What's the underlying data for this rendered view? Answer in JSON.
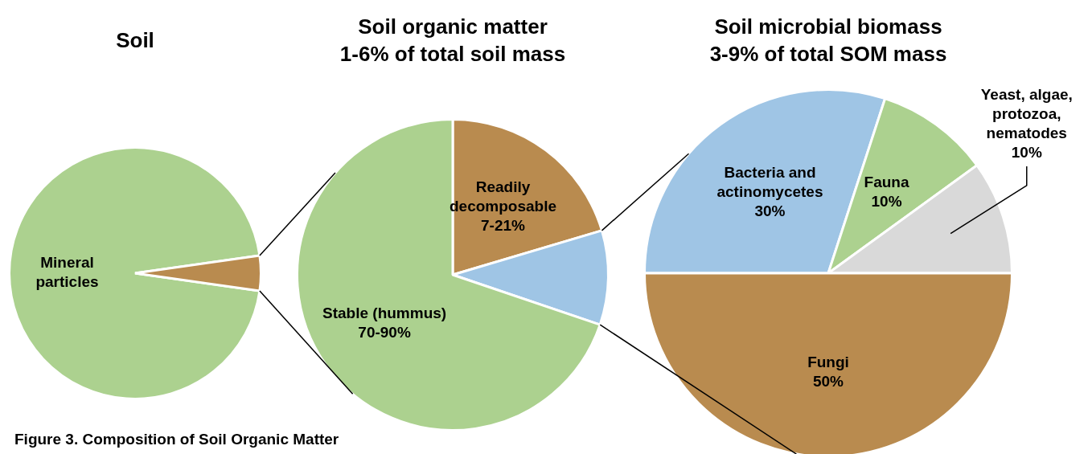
{
  "chart_data": [
    {
      "type": "pie",
      "title": "Soil",
      "categories": [
        "Mineral particles",
        null
      ],
      "values": [
        95.5,
        4.5
      ],
      "colors": [
        "#acd18f",
        "#b98b4f"
      ],
      "annotations": [
        "Figure 3. Composition of Soil Organic Matter"
      ]
    },
    {
      "type": "pie",
      "title": "Soil organic matter",
      "subtitle": "1-6% of total soil mass",
      "categories": [
        "Readily decomposable 7-21%",
        null,
        "Stable (hummus) 70-90%"
      ],
      "values": [
        20.4,
        9.8,
        69.8
      ],
      "colors": [
        "#b98b4f",
        "#9fc5e5",
        "#acd18f"
      ]
    },
    {
      "type": "pie",
      "title": "Soil microbial biomass",
      "subtitle": "3-9% of total SOM mass",
      "categories": [
        "Bacteria and actinomycetes",
        "Fauna",
        "Yeast, algae, protozoa, nematodes",
        "Fungi"
      ],
      "values": [
        30,
        10,
        10,
        50
      ],
      "value_labels": [
        "30%",
        "10%",
        "10%",
        "50%"
      ],
      "colors": [
        "#9fc5e5",
        "#acd18f",
        "#d9d9d9",
        "#b98b4f"
      ]
    }
  ]
}
